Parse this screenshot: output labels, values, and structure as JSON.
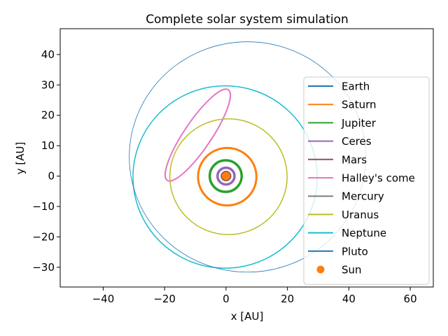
{
  "chart_data": {
    "type": "line",
    "title": "Complete solar system simulation",
    "xlabel": "x [AU]",
    "ylabel": "y [AU]",
    "xlim": [
      -54,
      67.5
    ],
    "ylim": [
      -36.5,
      48.5
    ],
    "xticks": [
      -40,
      -20,
      0,
      20,
      40,
      60
    ],
    "yticks": [
      -30,
      -20,
      -10,
      0,
      10,
      20,
      30,
      40
    ],
    "grid": false,
    "legend_position": "right",
    "series": [
      {
        "name": "Earth",
        "color": "#1f77b4",
        "kind": "orbit",
        "orbit": {
          "cx": 0,
          "cy": 0,
          "a": 1.0,
          "b": 1.0,
          "rot": 0,
          "thickness": 2.0
        }
      },
      {
        "name": "Saturn",
        "color": "#ff7f0e",
        "kind": "orbit",
        "orbit": {
          "cx": 0.4,
          "cy": -0.2,
          "a": 9.5,
          "b": 9.45,
          "rot": 0,
          "thickness": 3.0
        }
      },
      {
        "name": "Jupiter",
        "color": "#2ca02c",
        "kind": "orbit",
        "orbit": {
          "cx": -0.1,
          "cy": 0,
          "a": 5.2,
          "b": 5.18,
          "rot": 0,
          "thickness": 3.5
        }
      },
      {
        "name": "Ceres",
        "color": "#9467bd",
        "kind": "orbit",
        "orbit": {
          "cx": 0,
          "cy": 0,
          "a": 2.77,
          "b": 2.76,
          "rot": 0,
          "thickness": 3.5
        }
      },
      {
        "name": "Mars",
        "color": "#8c564b",
        "kind": "orbit",
        "orbit": {
          "cx": 0,
          "cy": 0,
          "a": 1.52,
          "b": 1.5,
          "rot": 0,
          "thickness": 2.0
        }
      },
      {
        "name": "Halley's come",
        "color": "#e377c2",
        "kind": "orbit",
        "orbit": {
          "cx": -9.2,
          "cy": 13.5,
          "a": 17.8,
          "b": 4.5,
          "rot": -56,
          "thickness": 2.0
        }
      },
      {
        "name": "Mercury",
        "color": "#7f7f7f",
        "kind": "orbit",
        "orbit": {
          "cx": 0,
          "cy": 0,
          "a": 0.39,
          "b": 0.38,
          "rot": 0,
          "thickness": 2.0
        }
      },
      {
        "name": "Uranus",
        "color": "#bcbd22",
        "kind": "orbit",
        "orbit": {
          "cx": 0.8,
          "cy": -0.2,
          "a": 19.1,
          "b": 19.05,
          "rot": 0,
          "thickness": 1.5
        }
      },
      {
        "name": "Neptune",
        "color": "#17becf",
        "kind": "orbit",
        "orbit": {
          "cx": -0.3,
          "cy": -0.3,
          "a": 30.0,
          "b": 30.0,
          "rot": 0,
          "thickness": 1.5
        }
      },
      {
        "name": "Pluto",
        "color": "#1f77b4",
        "kind": "orbit",
        "orbit": {
          "cx": 7.0,
          "cy": 6.3,
          "a": 38.5,
          "b": 37.9,
          "rot": 0,
          "thickness": 0.8
        }
      },
      {
        "name": "Sun",
        "color": "#ff7f0e",
        "kind": "point",
        "point": {
          "x": 0,
          "y": 0
        }
      }
    ]
  }
}
